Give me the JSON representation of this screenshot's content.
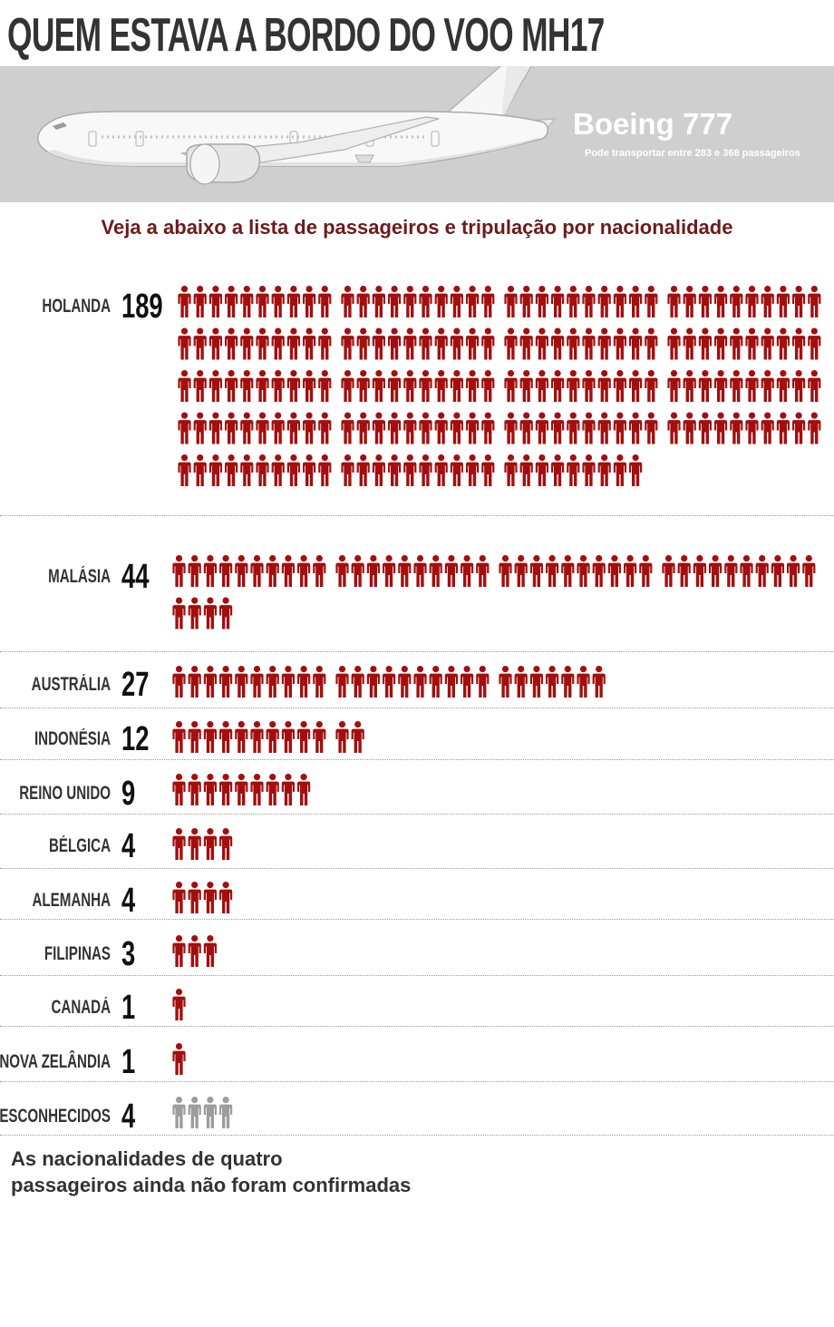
{
  "title": "QUEM ESTAVA A BORDO DO VOO MH17",
  "aircraft": {
    "name": "Boeing 777",
    "capacity": "Pode transportar entre 283 e 368 passageiros"
  },
  "subtitle": "Veja a abaixo a lista de passageiros e tripulação por nacionalidade",
  "colors": {
    "known": "#a30f0f",
    "unknown": "#9d9d9d",
    "subtitle": "#6e1a1a",
    "banner": "#cfcfcf"
  },
  "icon": "person-icon",
  "chart_data": {
    "type": "pictogram",
    "icon_unit": 1,
    "group_size": 10,
    "categories": [
      "HOLANDA",
      "MALÁSIA",
      "AUSTRÁLIA",
      "INDONÉSIA",
      "REINO UNIDO",
      "BÉLGICA",
      "ALEMANHA",
      "FILIPINAS",
      "CANADÁ",
      "NOVA ZELÂNDIA",
      "DESCONHECIDOS"
    ],
    "values": [
      189,
      44,
      27,
      12,
      9,
      4,
      4,
      3,
      1,
      1,
      4
    ],
    "unknown_category": "DESCONHECIDOS"
  },
  "footnote": {
    "line1": "As nacionalidades de quatro",
    "line2": "passageiros ainda não foram confirmadas"
  }
}
